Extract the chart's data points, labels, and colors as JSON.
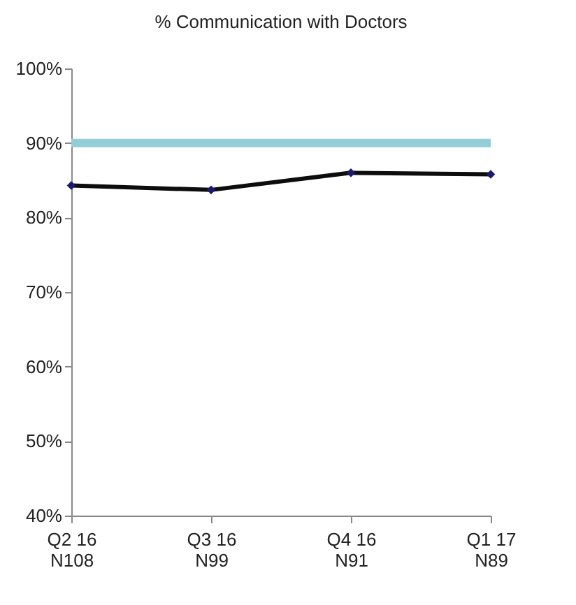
{
  "chart_data": {
    "type": "line",
    "title": "% Communication with Doctors",
    "categories": [
      "Q2 16\nN108",
      "Q3 16\nN99",
      "Q4 16\nN91",
      "Q1 17\nN89"
    ],
    "series": [
      {
        "color": "#0d0d0d",
        "values": [
          84.3,
          83.7,
          86,
          85.8
        ]
      }
    ],
    "ylim": [
      40,
      100
    ],
    "yticks": [
      {
        "value": 40,
        "label": "40%"
      },
      {
        "value": 50,
        "label": "50%"
      },
      {
        "value": 60,
        "label": "60%"
      },
      {
        "value": 70,
        "label": "70%"
      },
      {
        "value": 80,
        "label": "80%"
      },
      {
        "value": 90,
        "label": "90%"
      },
      {
        "value": 100,
        "label": "100%"
      }
    ],
    "ref_lines": [
      {
        "axis": "y",
        "value": 90,
        "color": "#92cdd8"
      }
    ],
    "marker": "diamond",
    "grid": false
  }
}
